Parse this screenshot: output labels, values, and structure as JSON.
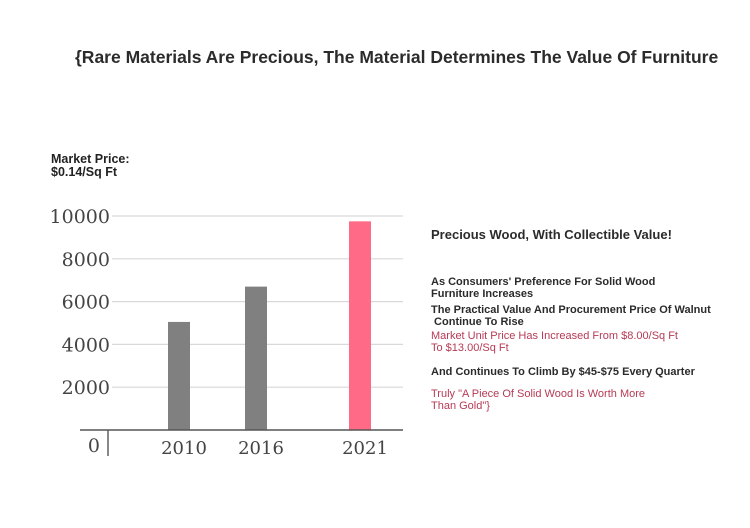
{
  "header": {
    "title": "{Rare Materials Are Precious, The Material Determines The Value Of Furniture"
  },
  "market_price": {
    "label": "Market Price:",
    "value": "$0.14/Sq Ft"
  },
  "chart_data": {
    "type": "bar",
    "categories": [
      "2010",
      "2016",
      "2021"
    ],
    "values": [
      5050,
      6700,
      9750
    ],
    "bar_colors": [
      "#808080",
      "#808080",
      "#ff6b86"
    ],
    "yticks": [
      "0",
      "2000",
      "4000",
      "6000",
      "8000",
      "10000"
    ],
    "ylim": [
      0,
      10000
    ],
    "grid": true,
    "title": "",
    "xlabel": "",
    "ylabel": ""
  },
  "side": {
    "heading": "Precious Wood, With Collectible Value!",
    "items": [
      [
        "As Consumers' Preference For Solid Wood",
        "Furniture Increases"
      ],
      [
        "The Practical Value And Procurement Price Of Walnut",
        " Continue To Rise"
      ],
      [
        "Market Unit Price Has Increased From $8.00/Sq Ft",
        "To $13.00/Sq Ft"
      ],
      [
        "And Continues To Climb By $45-$75 Every Quarter"
      ],
      [
        "Truly \"A Piece Of Solid Wood Is Worth More",
        "Than Gold\"}"
      ]
    ]
  },
  "colors": {
    "highlight_text": "#b63a55",
    "bar_gray": "#808080",
    "bar_accent": "#ff6b86"
  }
}
